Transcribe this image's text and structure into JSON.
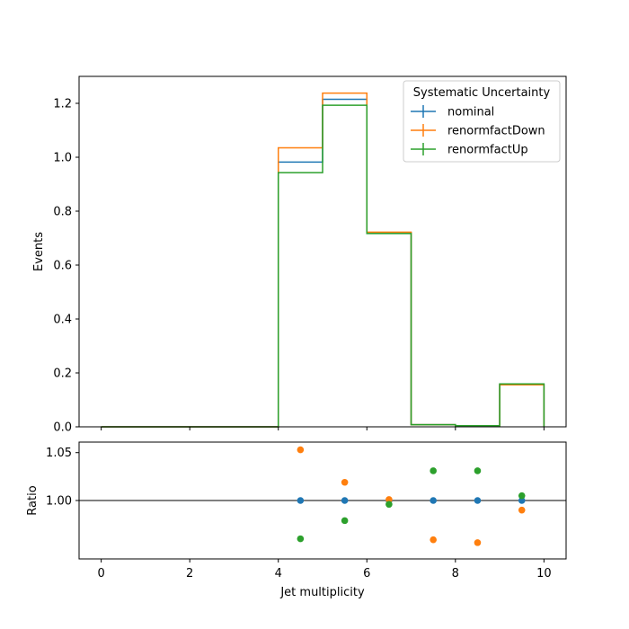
{
  "chart_data": [
    {
      "type": "step",
      "panel": "main",
      "ylabel": "Events",
      "xlim": [
        -0.5,
        10.5
      ],
      "ylim": [
        0,
        1.3
      ],
      "yticks": [
        "0.0",
        "0.2",
        "0.4",
        "0.6",
        "0.8",
        "1.0",
        "1.2"
      ],
      "bin_edges": [
        0,
        1,
        2,
        3,
        4,
        5,
        6,
        7,
        8,
        9,
        10
      ],
      "legend": {
        "title": "Systematic Uncertainty",
        "position": "top-right"
      },
      "series": [
        {
          "name": "nominal",
          "color": "#1f77b4",
          "values": [
            0,
            0,
            0,
            0,
            0.982,
            1.215,
            0.72,
            0.008,
            0.004,
            0.158
          ]
        },
        {
          "name": "renormfactDown",
          "color": "#ff7f0e",
          "values": [
            0,
            0,
            0,
            0,
            1.035,
            1.238,
            0.722,
            0.008,
            0.004,
            0.156
          ]
        },
        {
          "name": "renormfactUp",
          "color": "#2ca02c",
          "values": [
            0,
            0,
            0,
            0,
            0.943,
            1.193,
            0.717,
            0.008,
            0.004,
            0.159
          ]
        }
      ]
    },
    {
      "type": "scatter",
      "panel": "ratio",
      "xlabel": "Jet multiplicity",
      "ylabel": "Ratio",
      "xlim": [
        -0.5,
        10.5
      ],
      "ylim": [
        0.939,
        1.061
      ],
      "xticks": [
        "0",
        "2",
        "4",
        "6",
        "8",
        "10"
      ],
      "yticks": [
        "1.00",
        "1.05"
      ],
      "reference_line": 1.0,
      "x": [
        4.5,
        5.5,
        6.5,
        7.5,
        8.5,
        9.5
      ],
      "series": [
        {
          "name": "nominal",
          "color": "#1f77b4",
          "values": [
            1.0,
            1.0,
            1.0,
            1.0,
            1.0,
            1.0
          ]
        },
        {
          "name": "renormfactDown",
          "color": "#ff7f0e",
          "values": [
            1.053,
            1.019,
            1.001,
            0.959,
            0.956,
            0.99
          ]
        },
        {
          "name": "renormfactUp",
          "color": "#2ca02c",
          "values": [
            0.96,
            0.979,
            0.996,
            1.031,
            1.031,
            1.005
          ]
        }
      ]
    }
  ]
}
